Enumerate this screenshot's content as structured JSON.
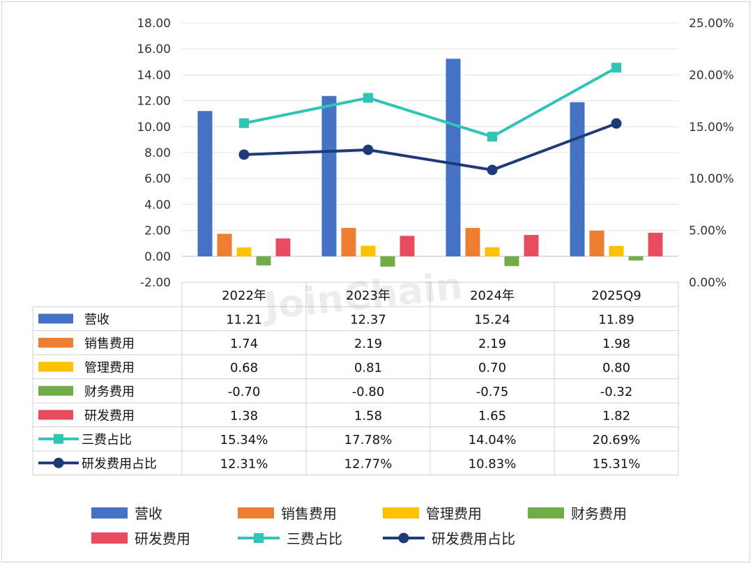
{
  "chart_data": {
    "type": "bar",
    "categories": [
      "2022年",
      "2023年",
      "2024年",
      "2025Q9"
    ],
    "series": [
      {
        "name": "营收",
        "kind": "bar",
        "axis": "left",
        "color": "#4472C4",
        "values": [
          11.21,
          12.37,
          15.24,
          11.89
        ],
        "labels": [
          "11.21",
          "12.37",
          "15.24",
          "11.89"
        ]
      },
      {
        "name": "销售费用",
        "kind": "bar",
        "axis": "left",
        "color": "#ED7D31",
        "values": [
          1.74,
          2.19,
          2.19,
          1.98
        ],
        "labels": [
          "1.74",
          "2.19",
          "2.19",
          "1.98"
        ]
      },
      {
        "name": "管理费用",
        "kind": "bar",
        "axis": "left",
        "color": "#FFC000",
        "values": [
          0.68,
          0.81,
          0.7,
          0.8
        ],
        "labels": [
          "0.68",
          "0.81",
          "0.70",
          "0.80"
        ]
      },
      {
        "name": "财务费用",
        "kind": "bar",
        "axis": "left",
        "color": "#70AD47",
        "values": [
          -0.7,
          -0.8,
          -0.75,
          -0.32
        ],
        "labels": [
          "-0.70",
          "-0.80",
          "-0.75",
          "-0.32"
        ]
      },
      {
        "name": "研发费用",
        "kind": "bar",
        "axis": "left",
        "color": "#E84C5E",
        "values": [
          1.38,
          1.58,
          1.65,
          1.82
        ],
        "labels": [
          "1.38",
          "1.58",
          "1.65",
          "1.82"
        ]
      },
      {
        "name": "三费占比",
        "kind": "line",
        "marker": "square",
        "axis": "right",
        "color": "#2EC4B6",
        "values": [
          15.34,
          17.78,
          14.04,
          20.69
        ],
        "labels": [
          "15.34%",
          "17.78%",
          "14.04%",
          "20.69%"
        ]
      },
      {
        "name": "研发费用占比",
        "kind": "line",
        "marker": "circle",
        "axis": "right",
        "color": "#1F3A78",
        "values": [
          12.31,
          12.77,
          10.83,
          15.31
        ],
        "labels": [
          "12.31%",
          "12.77%",
          "10.83%",
          "15.31%"
        ]
      }
    ],
    "y_left": {
      "range": [
        -2,
        18
      ],
      "ticks": [
        "-2.00",
        "0.00",
        "2.00",
        "4.00",
        "6.00",
        "8.00",
        "10.00",
        "12.00",
        "14.00",
        "16.00",
        "18.00"
      ]
    },
    "y_right": {
      "range": [
        0,
        25
      ],
      "unit": "%",
      "ticks": [
        "0.00%",
        "5.00%",
        "10.00%",
        "15.00%",
        "20.00%",
        "25.00%"
      ]
    },
    "grid": "horizontal",
    "data_table": true,
    "legend": "bottom",
    "watermark": "JoinChain"
  }
}
